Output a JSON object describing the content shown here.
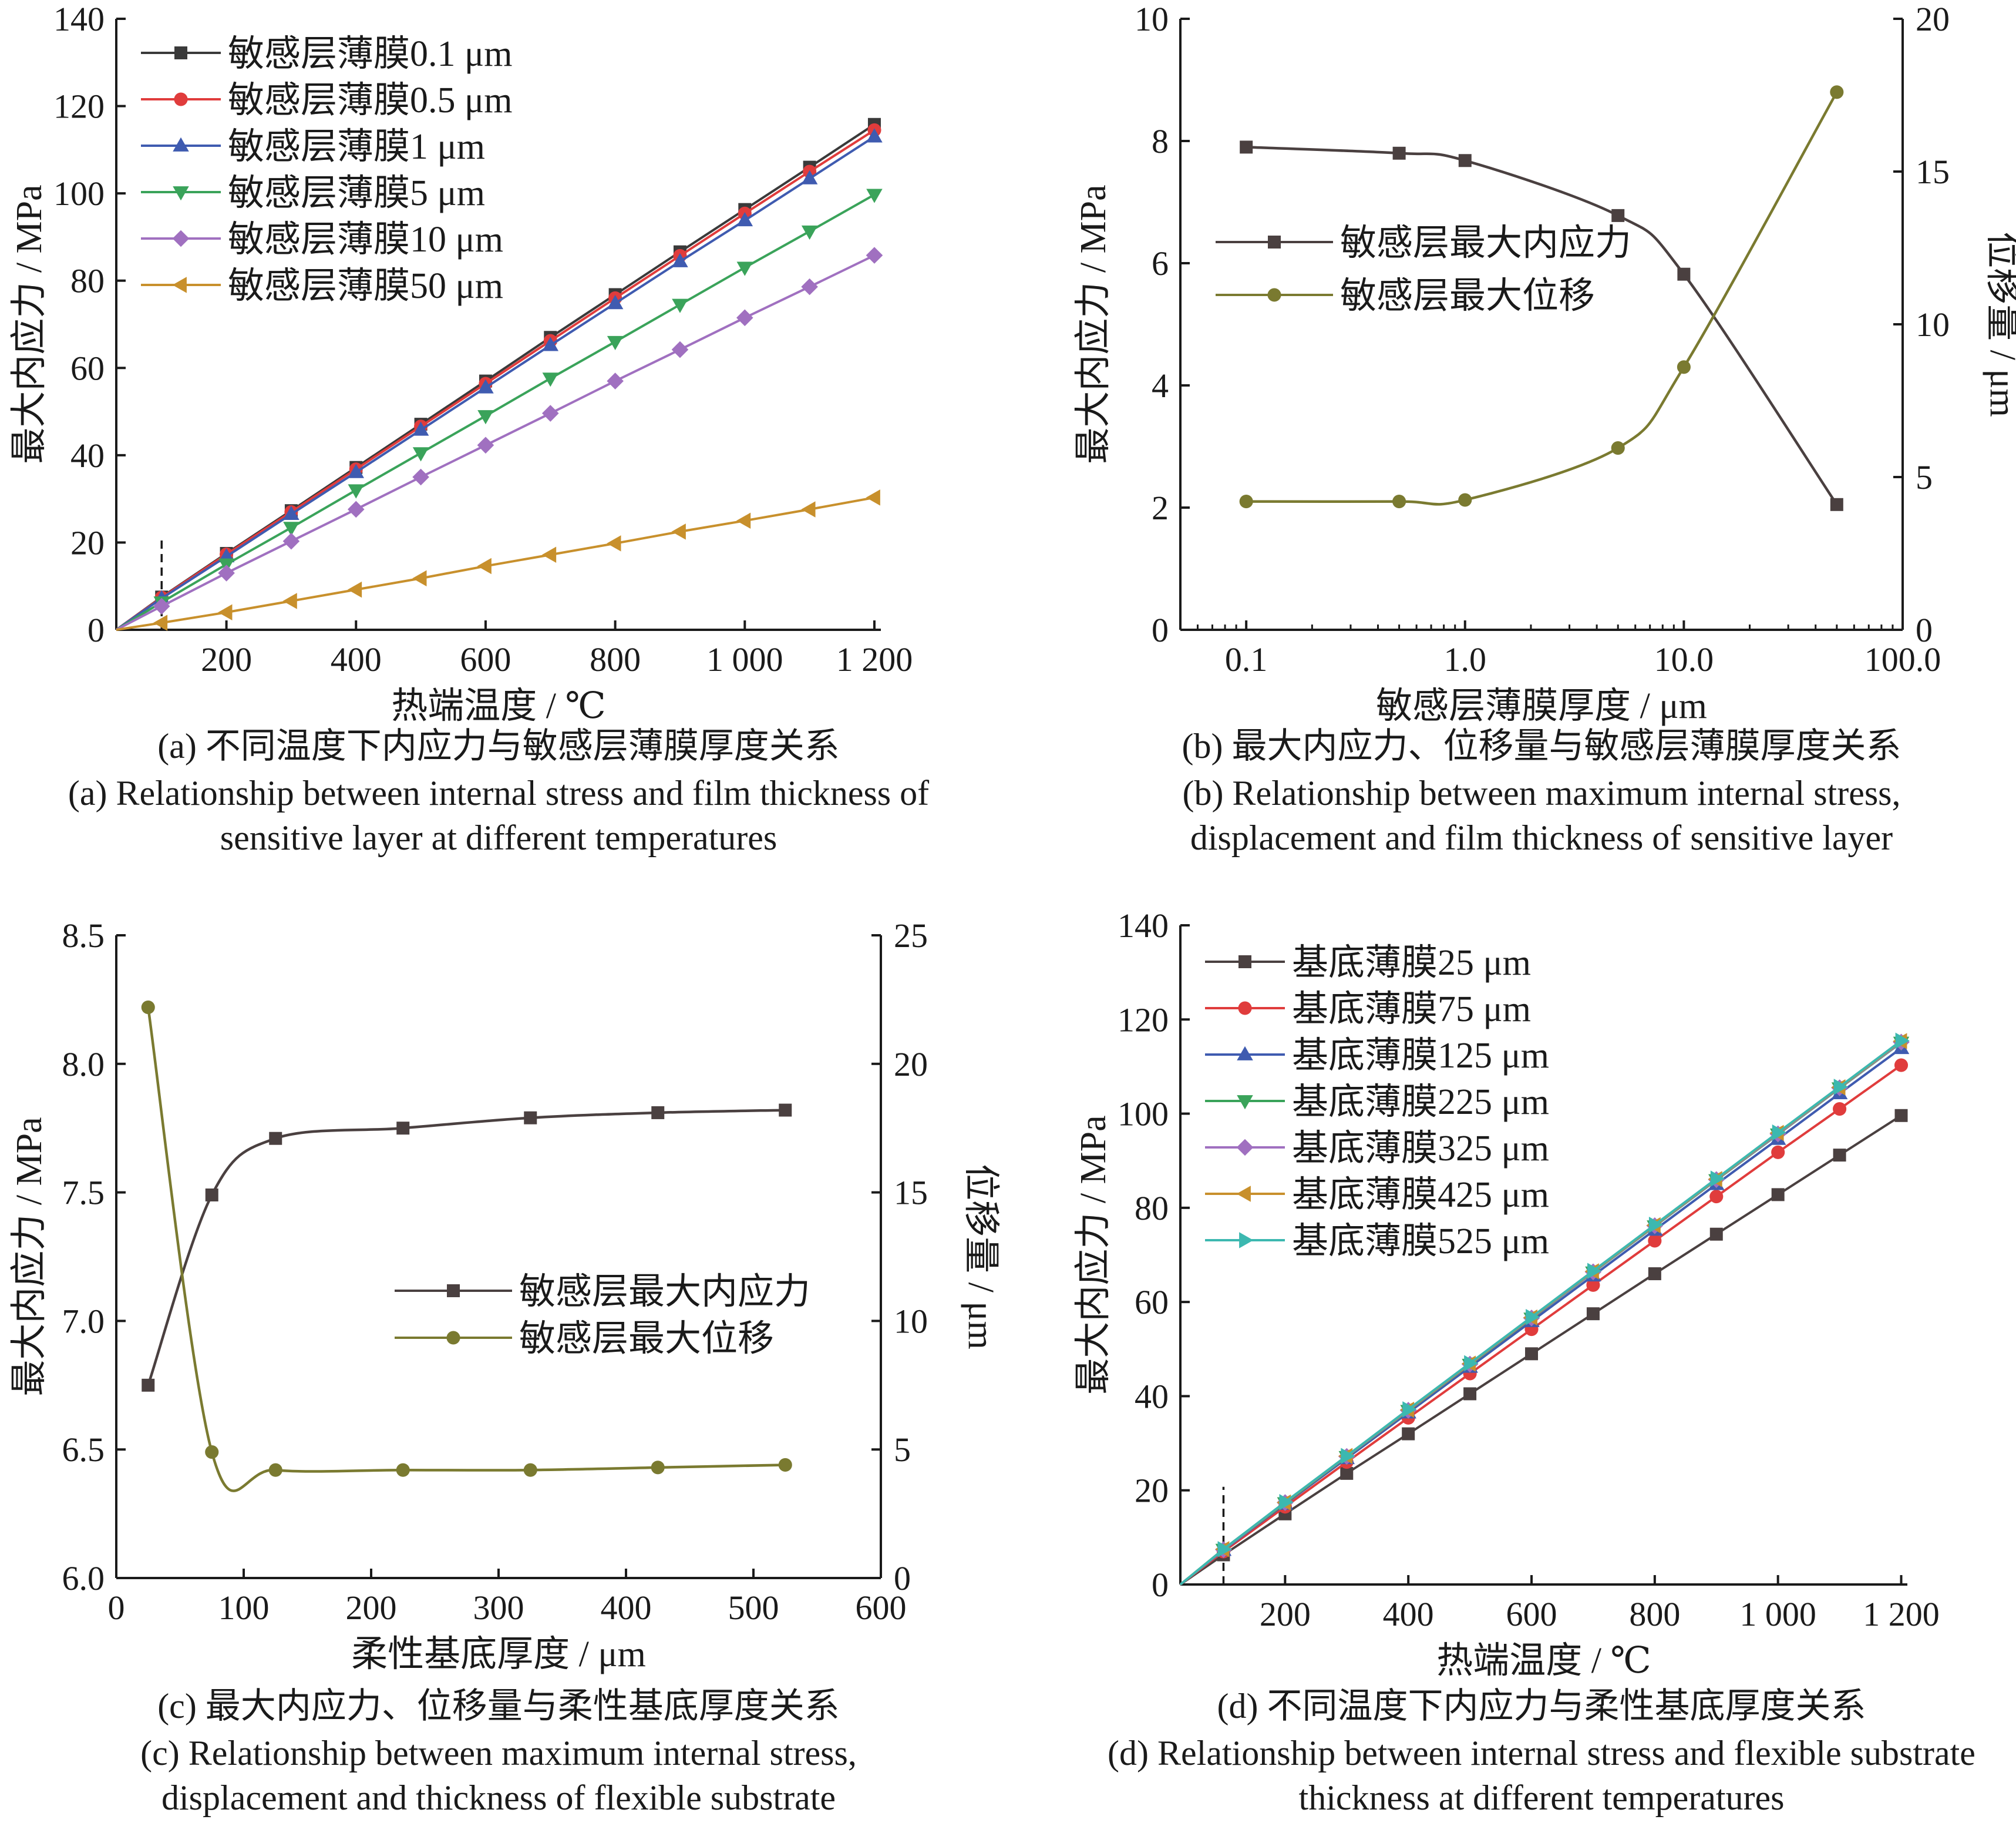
{
  "panels": [
    {
      "id": "a",
      "caption_cn": "(a) 不同温度下内应力与敏感层薄膜厚度关系",
      "caption_en": [
        "(a) Relationship between internal stress and film thickness of",
        "sensitive layer at different temperatures"
      ]
    },
    {
      "id": "b",
      "caption_cn": "(b) 最大内应力、位移量与敏感层薄膜厚度关系",
      "caption_en": [
        "(b) Relationship between maximum internal stress,",
        "displacement and film thickness of sensitive layer"
      ]
    },
    {
      "id": "c",
      "caption_cn": "(c) 最大内应力、位移量与柔性基底厚度关系",
      "caption_en": [
        "(c) Relationship between maximum internal stress,",
        "displacement and thickness of flexible substrate"
      ]
    },
    {
      "id": "d",
      "caption_cn": "(d) 不同温度下内应力与柔性基底厚度关系",
      "caption_en": [
        "(d) Relationship between internal stress and flexible substrate",
        "thickness at different temperatures"
      ]
    }
  ],
  "chart_data": [
    {
      "id": "a",
      "type": "line",
      "xlabel": "热端温度 / ℃",
      "ylabel": "最大内应力 / MPa",
      "xlim": [
        30,
        1210
      ],
      "ylim": [
        0,
        140
      ],
      "xticks": [
        200,
        400,
        600,
        800,
        1000,
        1200
      ],
      "xtick_labels": [
        "200",
        "400",
        "600",
        "800",
        "1 000",
        "1 200"
      ],
      "yticks": [
        0,
        20,
        40,
        60,
        80,
        100,
        120,
        140
      ],
      "legend_position": "top-left",
      "grid": false,
      "x": [
        30,
        100,
        200,
        300,
        400,
        500,
        600,
        700,
        800,
        900,
        1000,
        1100,
        1200
      ],
      "series": [
        {
          "name": "敏感层薄膜0.1 μm",
          "color": "#3a3a3a",
          "marker": "square",
          "values": [
            0,
            7.5,
            17.5,
            27.3,
            37.2,
            47.1,
            57.0,
            67.0,
            76.8,
            86.6,
            96.3,
            106.0,
            115.8
          ]
        },
        {
          "name": "敏感层薄膜0.5 μm",
          "color": "#e03c3c",
          "marker": "circle",
          "values": [
            0,
            7.4,
            17.3,
            27.0,
            36.8,
            46.6,
            56.4,
            66.2,
            76.0,
            85.7,
            95.4,
            105.0,
            114.5
          ]
        },
        {
          "name": "敏感层薄膜1 μm",
          "color": "#3f5bb0",
          "marker": "triangle-up",
          "values": [
            0,
            7.2,
            16.8,
            26.5,
            36.1,
            45.8,
            55.5,
            65.2,
            74.8,
            84.4,
            93.8,
            103.4,
            113.0
          ]
        },
        {
          "name": "敏感层薄膜5 μm",
          "color": "#3aa35a",
          "marker": "triangle-down",
          "values": [
            0,
            6.3,
            15.0,
            23.4,
            32.0,
            40.5,
            49.0,
            57.6,
            66.0,
            74.5,
            83.0,
            91.3,
            99.7
          ]
        },
        {
          "name": "敏感层薄膜10 μm",
          "color": "#a070c0",
          "marker": "diamond",
          "values": [
            0,
            5.4,
            13.0,
            20.3,
            27.6,
            35.0,
            42.3,
            49.6,
            57.0,
            64.2,
            71.5,
            78.6,
            85.8
          ]
        },
        {
          "name": "敏感层薄膜50 μm",
          "color": "#c8902c",
          "marker": "triangle-left",
          "values": [
            0,
            1.6,
            4.0,
            6.6,
            9.2,
            11.8,
            14.6,
            17.2,
            19.8,
            22.5,
            25.0,
            27.6,
            30.3
          ]
        }
      ],
      "marker_skip_first": true,
      "annotation": {
        "type": "dashed-vertical-line",
        "x": 100,
        "y_range": [
          0,
          20
        ]
      }
    },
    {
      "id": "b",
      "type": "line",
      "xlabel": "敏感层薄膜厚度 / μm",
      "ylabel": "最大内应力 / MPa",
      "y2label": "位移量 / μm",
      "xscale": "log",
      "xlim": [
        0.05,
        100
      ],
      "ylim": [
        0,
        10
      ],
      "y2lim": [
        0,
        20
      ],
      "xticks": [
        0.1,
        1,
        10,
        100
      ],
      "xtick_labels": [
        "0.1",
        "1.0",
        "10.0",
        "100.0"
      ],
      "yticks": [
        0,
        2,
        4,
        6,
        8,
        10
      ],
      "y2ticks": [
        0,
        5,
        10,
        15,
        20
      ],
      "legend_position": "middle-left",
      "grid": false,
      "x": [
        0.1,
        0.5,
        1,
        5,
        10,
        50
      ],
      "series": [
        {
          "name": "敏感层最大内应力",
          "axis": "left",
          "color": "#4a4040",
          "marker": "square",
          "values": [
            7.9,
            7.8,
            7.68,
            6.78,
            5.82,
            2.05
          ]
        },
        {
          "name": "敏感层最大位移",
          "axis": "right",
          "color": "#7a7a30",
          "marker": "circle",
          "values": [
            4.2,
            4.2,
            4.25,
            5.95,
            8.6,
            17.6
          ]
        }
      ]
    },
    {
      "id": "c",
      "type": "line",
      "xlabel": "柔性基底厚度 / μm",
      "ylabel": "最大内应力 / MPa",
      "y2label": "位移量 / μm",
      "xlim": [
        0,
        600
      ],
      "ylim": [
        6.0,
        8.5
      ],
      "y2lim": [
        0,
        25
      ],
      "xticks": [
        0,
        100,
        200,
        300,
        400,
        500,
        600
      ],
      "yticks": [
        6.0,
        6.5,
        7.0,
        7.5,
        8.0,
        8.5
      ],
      "ytick_labels": [
        "6.0",
        "6.5",
        "7.0",
        "7.5",
        "8.0",
        "8.5"
      ],
      "y2ticks": [
        0,
        5,
        10,
        15,
        20,
        25
      ],
      "legend_position": "center-right",
      "grid": false,
      "x": [
        25,
        75,
        125,
        225,
        325,
        425,
        525
      ],
      "series": [
        {
          "name": "敏感层最大内应力",
          "axis": "left",
          "color": "#4a4040",
          "marker": "square",
          "values": [
            6.75,
            7.49,
            7.71,
            7.75,
            7.79,
            7.81,
            7.82
          ]
        },
        {
          "name": "敏感层最大位移",
          "axis": "right",
          "color": "#7a7a30",
          "marker": "circle",
          "values": [
            22.2,
            4.9,
            4.2,
            4.2,
            4.2,
            4.3,
            4.4
          ]
        }
      ]
    },
    {
      "id": "d",
      "type": "line",
      "xlabel": "热端温度 / ℃",
      "ylabel": "最大内应力 / MPa",
      "xlim": [
        30,
        1210
      ],
      "ylim": [
        0,
        140
      ],
      "xticks": [
        200,
        400,
        600,
        800,
        1000,
        1200
      ],
      "xtick_labels": [
        "200",
        "400",
        "600",
        "800",
        "1 000",
        "1 200"
      ],
      "yticks": [
        0,
        20,
        40,
        60,
        80,
        100,
        120,
        140
      ],
      "legend_position": "top-left",
      "grid": false,
      "x": [
        30,
        100,
        200,
        300,
        400,
        500,
        600,
        700,
        800,
        900,
        1000,
        1100,
        1200
      ],
      "series": [
        {
          "name": "基底薄膜25 μm",
          "color": "#4a4040",
          "marker": "square",
          "values": [
            0,
            6.3,
            15.0,
            23.6,
            32.0,
            40.5,
            49.0,
            57.5,
            66.0,
            74.4,
            82.8,
            91.2,
            99.6
          ]
        },
        {
          "name": "基底薄膜75 μm",
          "color": "#e03c3c",
          "marker": "circle",
          "values": [
            0,
            7.0,
            16.5,
            26.0,
            35.4,
            44.8,
            54.2,
            63.6,
            73.0,
            82.4,
            91.8,
            101.0,
            110.3
          ]
        },
        {
          "name": "基底薄膜125 μm",
          "color": "#3f5bb0",
          "marker": "triangle-up",
          "values": [
            0,
            7.3,
            17.1,
            26.8,
            36.5,
            46.2,
            55.9,
            65.6,
            75.3,
            85.0,
            94.6,
            104.3,
            113.9
          ]
        },
        {
          "name": "基底薄膜225 μm",
          "color": "#3aa35a",
          "marker": "triangle-down",
          "values": [
            0,
            7.4,
            17.3,
            27.1,
            36.9,
            46.7,
            56.5,
            66.3,
            76.1,
            85.9,
            95.6,
            105.4,
            115.1
          ]
        },
        {
          "name": "基底薄膜325 μm",
          "color": "#a070c0",
          "marker": "diamond",
          "values": [
            0,
            7.4,
            17.4,
            27.2,
            37.0,
            46.8,
            56.6,
            66.4,
            76.2,
            86.0,
            95.7,
            105.5,
            115.2
          ]
        },
        {
          "name": "基底薄膜425 μm",
          "color": "#c8902c",
          "marker": "triangle-left",
          "values": [
            0,
            7.5,
            17.4,
            27.3,
            37.1,
            46.9,
            56.7,
            66.5,
            76.3,
            86.1,
            95.9,
            105.6,
            115.4
          ]
        },
        {
          "name": "基底薄膜525 μm",
          "color": "#3cb8b0",
          "marker": "triangle-right",
          "values": [
            0,
            7.5,
            17.5,
            27.3,
            37.2,
            47.0,
            56.8,
            66.6,
            76.4,
            86.2,
            96.0,
            105.7,
            115.5
          ]
        }
      ],
      "marker_skip_first": true,
      "annotation": {
        "type": "dashed-vertical-line",
        "x": 100,
        "y_range": [
          0,
          20
        ]
      }
    }
  ]
}
